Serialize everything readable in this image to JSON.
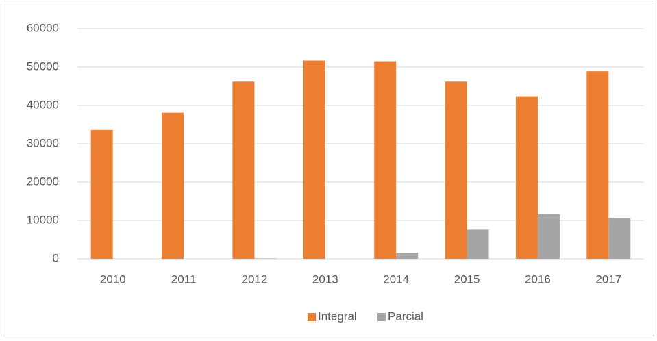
{
  "chart_data": {
    "type": "bar",
    "categories": [
      "2010",
      "2011",
      "2012",
      "2013",
      "2014",
      "2015",
      "2016",
      "2017"
    ],
    "series": [
      {
        "name": "Integral",
        "color": "#ed7d31",
        "values": [
          33600,
          38100,
          46200,
          51700,
          51500,
          46200,
          42400,
          48900
        ]
      },
      {
        "name": "Parcial",
        "color": "#a5a5a5",
        "values": [
          0,
          0,
          100,
          0,
          1600,
          7600,
          11600,
          10700
        ]
      }
    ],
    "ylim": [
      0,
      60000
    ],
    "yticks": [
      0,
      10000,
      20000,
      30000,
      40000,
      50000,
      60000
    ],
    "grid": true,
    "legend": "bottom"
  }
}
